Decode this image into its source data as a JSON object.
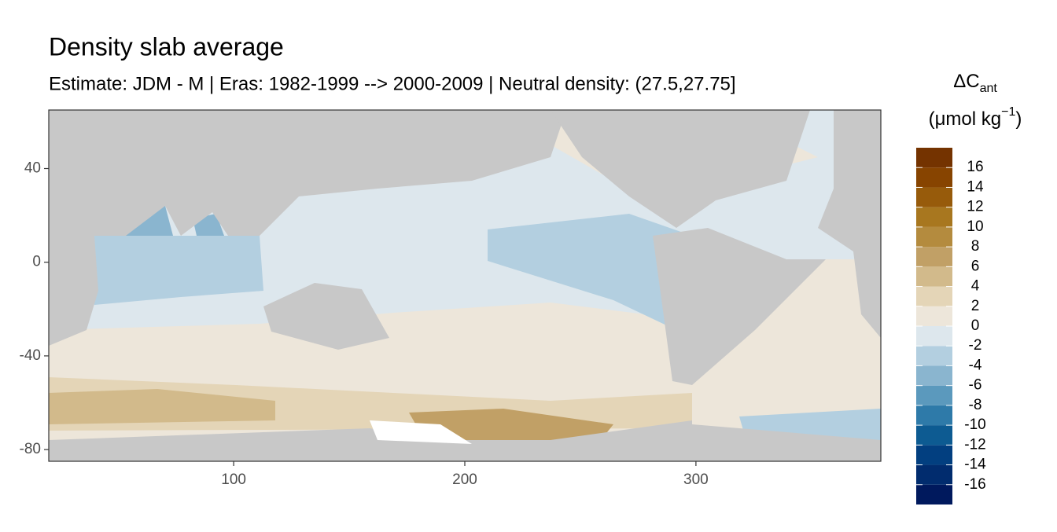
{
  "chart_data": {
    "type": "raster_map",
    "title": "Density slab average",
    "subtitle": "Estimate: JDM - M | Eras: 1982-1999 --> 2000-2009 | Neutral density: (27.5,27.75]",
    "xlim": [
      20,
      380
    ],
    "xticks": [
      100,
      200,
      300
    ],
    "ylim": [
      -85,
      65
    ],
    "yticks": [
      40,
      0,
      -40,
      -80
    ],
    "legend": {
      "title": "ΔC",
      "title_subscript": "ant",
      "unit": "(μmol kg",
      "unit_superscript": "−1",
      "unit_close": ")",
      "breaks": [
        -18,
        -16,
        -14,
        -12,
        -10,
        -8,
        -6,
        -4,
        -2,
        0,
        2,
        4,
        6,
        8,
        10,
        12,
        14,
        16,
        18
      ],
      "ticks": [
        16,
        14,
        12,
        10,
        8,
        6,
        4,
        2,
        0,
        -2,
        -4,
        -6,
        -8,
        -10,
        -12,
        -14,
        -16
      ],
      "colors": [
        "#00195d",
        "#012c6e",
        "#023f80",
        "#0d5b92",
        "#2e7aa9",
        "#5b99bd",
        "#8ab5cf",
        "#b3cfe0",
        "#dde7ed",
        "#ede6da",
        "#e4d5b7",
        "#d2ba8b",
        "#c1a066",
        "#b48b3e",
        "#a8771f",
        "#975b0b",
        "#874400",
        "#743300"
      ]
    }
  }
}
